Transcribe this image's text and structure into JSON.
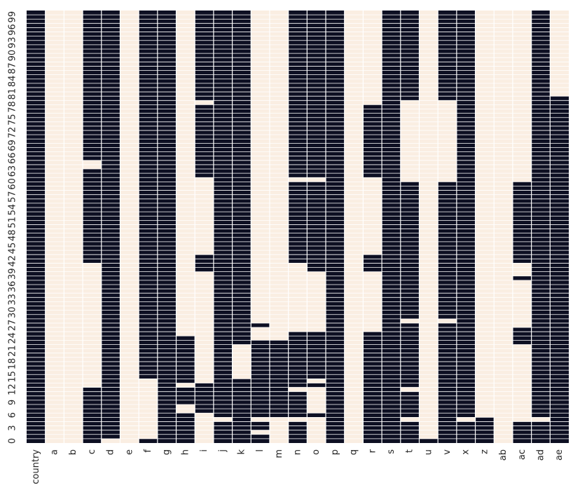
{
  "chart_data": {
    "type": "heatmap",
    "title": "",
    "xlabel": "",
    "ylabel": "",
    "x_categories": [
      "country",
      "a",
      "b",
      "c",
      "d",
      "e",
      "f",
      "g",
      "h",
      "i",
      "j",
      "k",
      "l",
      "m",
      "n",
      "o",
      "p",
      "q",
      "r",
      "s",
      "t",
      "u",
      "v",
      "x",
      "z",
      "ab",
      "ac",
      "ad",
      "ae"
    ],
    "y_tick_labels": [
      "0",
      "3",
      "6",
      "9",
      "12",
      "15",
      "18",
      "21",
      "24",
      "27",
      "30",
      "33",
      "36",
      "39",
      "42",
      "45",
      "48",
      "51",
      "54",
      "57",
      "60",
      "63",
      "66",
      "69",
      "72",
      "75",
      "78",
      "81",
      "84",
      "87",
      "90",
      "93",
      "96",
      "99"
    ],
    "y_tick_rows": [
      0,
      3,
      6,
      9,
      12,
      15,
      18,
      21,
      24,
      27,
      30,
      33,
      36,
      39,
      42,
      45,
      48,
      51,
      54,
      57,
      60,
      63,
      66,
      69,
      72,
      75,
      78,
      81,
      84,
      87,
      90,
      93,
      96,
      99
    ],
    "n_rows": 101,
    "row_order": "0 at bottom, 100 at top",
    "value_legend": {
      "1": "dark cell",
      "0": "light cell"
    },
    "colors": {
      "one": "#0d0f22",
      "zero": "#faeee2",
      "gridline": "#ffffff"
    },
    "columns": [
      {
        "name": "country",
        "ones_ranges": [
          [
            0,
            100
          ]
        ]
      },
      {
        "name": "a",
        "ones_ranges": []
      },
      {
        "name": "b",
        "ones_ranges": []
      },
      {
        "name": "c",
        "ones_ranges": [
          [
            0,
            12
          ],
          [
            42,
            63
          ],
          [
            66,
            100
          ]
        ]
      },
      {
        "name": "d",
        "ones_ranges": [
          [
            1,
            100
          ]
        ]
      },
      {
        "name": "e",
        "ones_ranges": []
      },
      {
        "name": "f",
        "ones_ranges": [
          [
            0,
            0
          ],
          [
            15,
            100
          ]
        ]
      },
      {
        "name": "g",
        "ones_ranges": [
          [
            0,
            100
          ]
        ]
      },
      {
        "name": "h",
        "ones_ranges": [
          [
            0,
            6
          ],
          [
            9,
            12
          ],
          [
            14,
            24
          ]
        ]
      },
      {
        "name": "i",
        "ones_ranges": [
          [
            7,
            13
          ],
          [
            40,
            43
          ],
          [
            62,
            78
          ],
          [
            80,
            100
          ]
        ]
      },
      {
        "name": "j",
        "ones_ranges": [
          [
            0,
            4
          ],
          [
            6,
            100
          ]
        ]
      },
      {
        "name": "k",
        "ones_ranges": [
          [
            0,
            14
          ],
          [
            23,
            100
          ]
        ]
      },
      {
        "name": "l",
        "ones_ranges": [
          [
            0,
            1
          ],
          [
            3,
            4
          ],
          [
            6,
            23
          ],
          [
            27,
            27
          ]
        ]
      },
      {
        "name": "m",
        "ones_ranges": [
          [
            6,
            23
          ]
        ]
      },
      {
        "name": "n",
        "ones_ranges": [
          [
            0,
            4
          ],
          [
            6,
            11
          ],
          [
            13,
            25
          ],
          [
            42,
            60
          ],
          [
            62,
            100
          ]
        ]
      },
      {
        "name": "o",
        "ones_ranges": [
          [
            6,
            6
          ],
          [
            13,
            13
          ],
          [
            15,
            25
          ],
          [
            40,
            60
          ],
          [
            62,
            100
          ]
        ]
      },
      {
        "name": "p",
        "ones_ranges": [
          [
            0,
            100
          ]
        ]
      },
      {
        "name": "q",
        "ones_ranges": []
      },
      {
        "name": "r",
        "ones_ranges": [
          [
            0,
            25
          ],
          [
            40,
            43
          ],
          [
            62,
            78
          ]
        ]
      },
      {
        "name": "s",
        "ones_ranges": [
          [
            0,
            100
          ]
        ]
      },
      {
        "name": "t",
        "ones_ranges": [
          [
            0,
            4
          ],
          [
            6,
            11
          ],
          [
            13,
            27
          ],
          [
            29,
            60
          ],
          [
            80,
            100
          ]
        ]
      },
      {
        "name": "u",
        "ones_ranges": [
          [
            0,
            0
          ]
        ]
      },
      {
        "name": "v",
        "ones_ranges": [
          [
            0,
            27
          ],
          [
            29,
            60
          ],
          [
            80,
            100
          ]
        ]
      },
      {
        "name": "x",
        "ones_ranges": [
          [
            0,
            4
          ],
          [
            6,
            100
          ]
        ]
      },
      {
        "name": "z",
        "ones_ranges": [
          [
            0,
            5
          ]
        ]
      },
      {
        "name": "ab",
        "ones_ranges": []
      },
      {
        "name": "ac",
        "ones_ranges": [
          [
            0,
            4
          ],
          [
            23,
            26
          ],
          [
            38,
            38
          ],
          [
            42,
            60
          ]
        ]
      },
      {
        "name": "ad",
        "ones_ranges": [
          [
            0,
            4
          ],
          [
            6,
            100
          ]
        ]
      },
      {
        "name": "ae",
        "ones_ranges": [
          [
            0,
            80
          ]
        ]
      }
    ]
  }
}
